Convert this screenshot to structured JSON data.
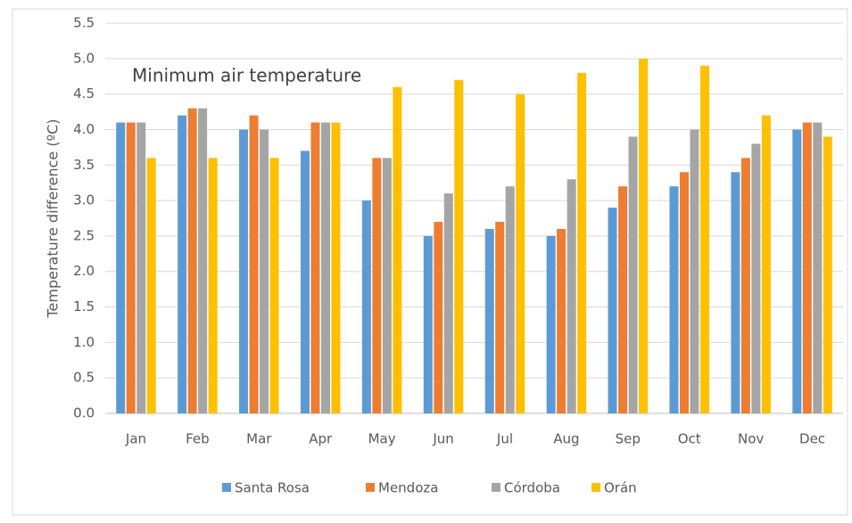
{
  "chart_data": {
    "type": "bar",
    "title": "Minimum  air temperature",
    "y_label": "Temperature difference (ºC)",
    "categories": [
      "Jan",
      "Feb",
      "Mar",
      "Apr",
      "May",
      "Jun",
      "Jul",
      "Aug",
      "Sep",
      "Oct",
      "Nov",
      "Dec"
    ],
    "series": [
      {
        "name": "Santa Rosa",
        "color": "#5b9bd5",
        "values": [
          4.1,
          4.2,
          4.0,
          3.7,
          3.0,
          2.5,
          2.6,
          2.5,
          2.9,
          3.2,
          3.4,
          4.0
        ]
      },
      {
        "name": "Mendoza",
        "color": "#ed7d31",
        "values": [
          4.1,
          4.3,
          4.2,
          4.1,
          3.6,
          2.7,
          2.7,
          2.6,
          3.2,
          3.4,
          3.6,
          4.1
        ]
      },
      {
        "name": "Córdoba",
        "color": "#a5a5a5",
        "values": [
          4.1,
          4.3,
          4.0,
          4.1,
          3.6,
          3.1,
          3.2,
          3.3,
          3.9,
          4.0,
          3.8,
          4.1
        ]
      },
      {
        "name": "Orán",
        "color": "#ffc000",
        "values": [
          3.6,
          3.6,
          3.6,
          4.1,
          4.6,
          4.7,
          4.5,
          4.8,
          5.0,
          4.9,
          4.2,
          3.9
        ]
      }
    ],
    "ylim": [
      0,
      5.5
    ],
    "yticks": [
      {
        "value": 0,
        "label": "0.0"
      },
      0.5,
      {
        "value": 1,
        "label": "1.0"
      },
      1.5,
      {
        "value": 2,
        "label": "2.0"
      },
      2.5,
      {
        "value": 3,
        "label": "3.0"
      },
      3.5,
      {
        "value": 4,
        "label": "4.0"
      },
      4.5,
      {
        "value": 5,
        "label": "5.0"
      },
      5.5
    ],
    "grid": true,
    "legend": "bottom"
  }
}
